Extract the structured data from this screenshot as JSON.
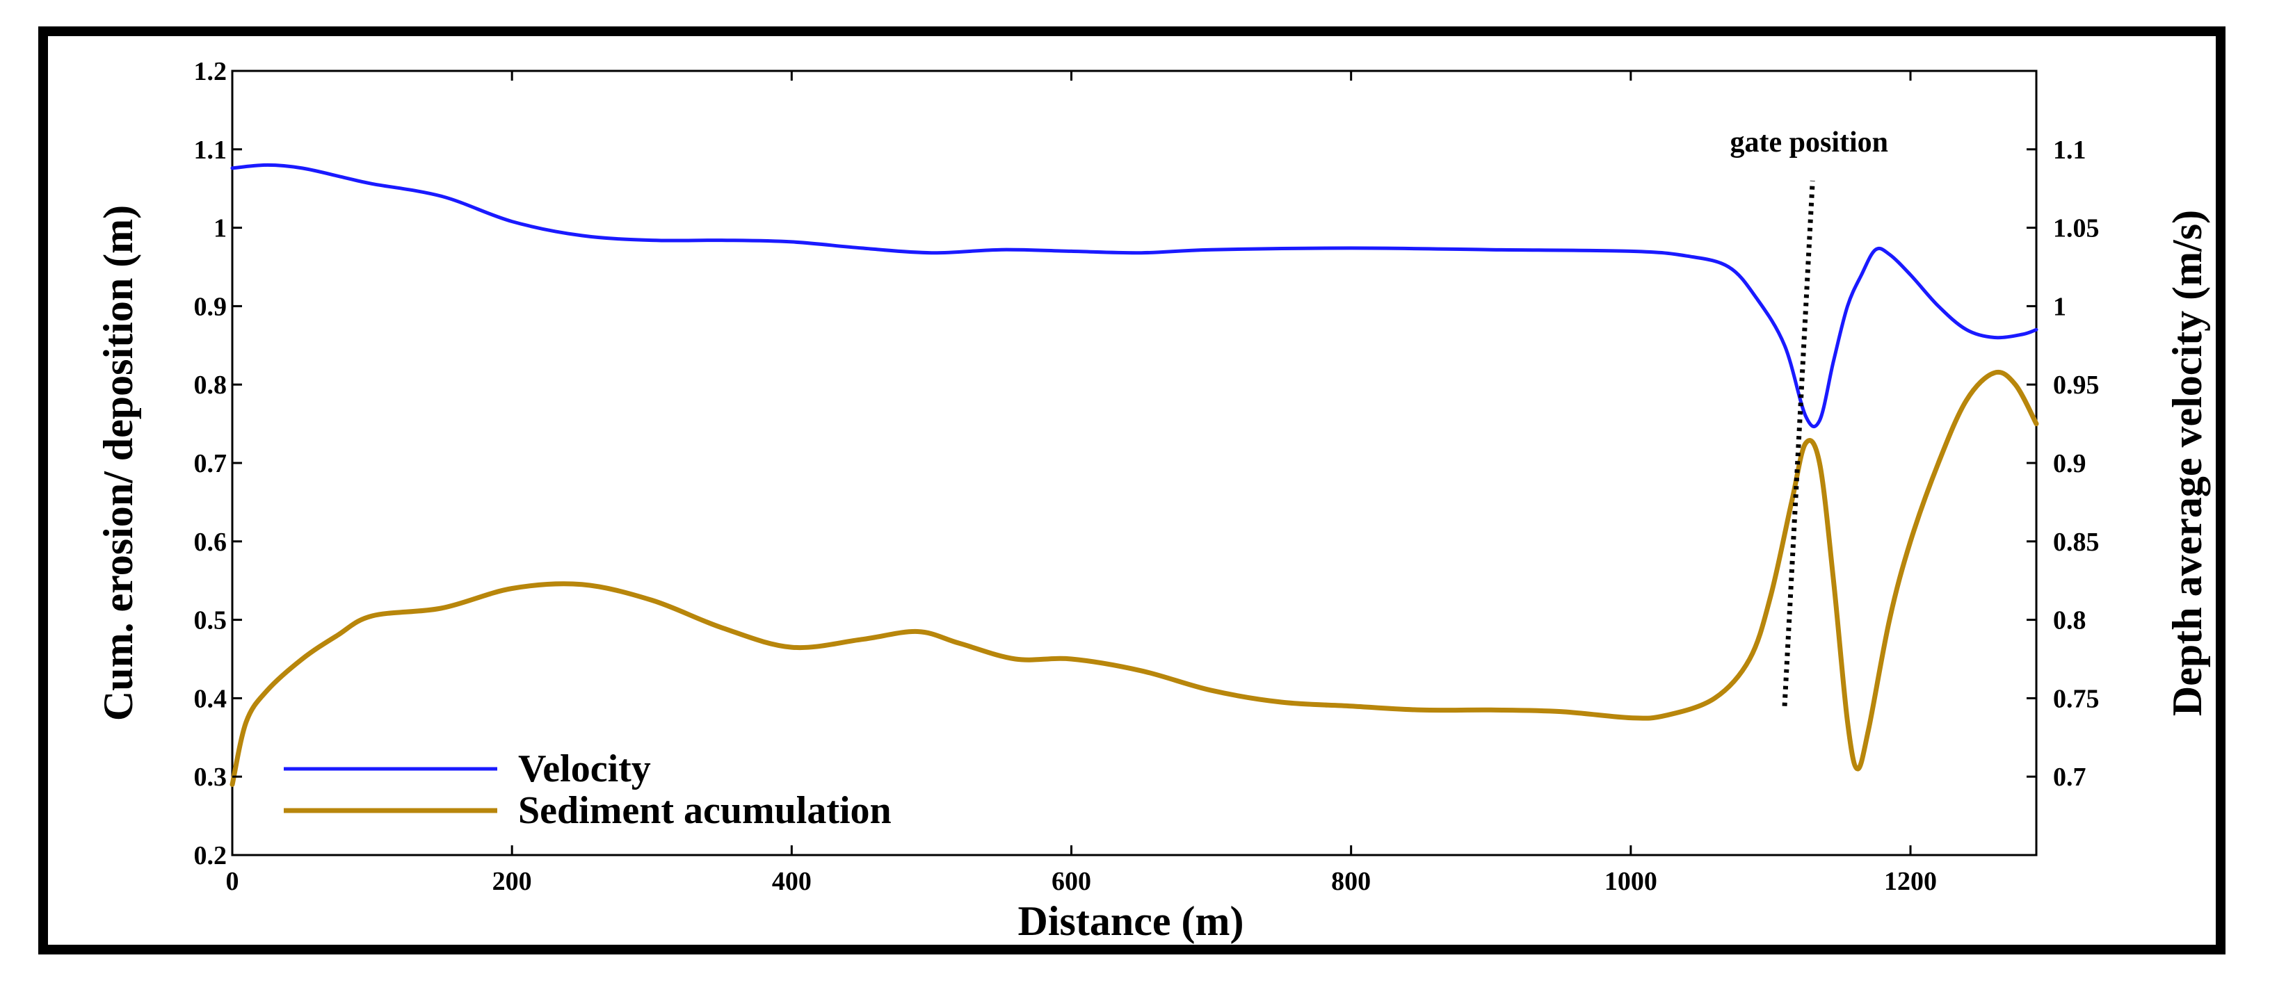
{
  "chart_data": {
    "type": "line",
    "title": "",
    "xlabel": "Distance (m)",
    "ylabel_left": "Cum. erosion/ deposition (m)",
    "ylabel_right": "Depth average velocity (m/s)",
    "xlim": [
      0,
      1290
    ],
    "ylim_left": [
      0.2,
      1.2
    ],
    "ylim_right": [
      0.65,
      1.15
    ],
    "x_ticks": [
      0,
      200,
      400,
      600,
      800,
      1000,
      1200
    ],
    "x_tick_labels": [
      "0",
      "200",
      "400",
      "600",
      "800",
      "1000",
      "1200"
    ],
    "y_left_ticks": [
      0.2,
      0.3,
      0.4,
      0.5,
      0.6,
      0.7,
      0.8,
      0.9,
      1.0,
      1.1,
      1.2
    ],
    "y_left_tick_labels": [
      "0.2",
      "0.3",
      "0.4",
      "0.5",
      "0.6",
      "0.7",
      "0.8",
      "0.9",
      "1",
      "1.1",
      "1.2"
    ],
    "y_right_ticks": [
      0.7,
      0.75,
      0.8,
      0.85,
      0.9,
      0.95,
      1.0,
      1.05,
      1.1
    ],
    "y_right_tick_labels": [
      "0.7",
      "0.75",
      "0.8",
      "0.85",
      "0.9",
      "0.95",
      "1",
      "1.05",
      "1.1"
    ],
    "grid": false,
    "legend_position": "bottom-left",
    "series": [
      {
        "name": "Velocity",
        "axis": "right",
        "color": "#1a1aff",
        "points": [
          [
            0,
            1.088
          ],
          [
            25,
            1.09
          ],
          [
            50,
            1.088
          ],
          [
            80,
            1.082
          ],
          [
            100,
            1.078
          ],
          [
            150,
            1.07
          ],
          [
            200,
            1.054
          ],
          [
            250,
            1.045
          ],
          [
            300,
            1.042
          ],
          [
            350,
            1.042
          ],
          [
            400,
            1.041
          ],
          [
            450,
            1.037
          ],
          [
            500,
            1.034
          ],
          [
            550,
            1.036
          ],
          [
            600,
            1.035
          ],
          [
            650,
            1.034
          ],
          [
            700,
            1.036
          ],
          [
            800,
            1.037
          ],
          [
            900,
            1.036
          ],
          [
            1000,
            1.035
          ],
          [
            1040,
            1.032
          ],
          [
            1070,
            1.025
          ],
          [
            1090,
            1.005
          ],
          [
            1110,
            0.975
          ],
          [
            1125,
            0.93
          ],
          [
            1135,
            0.927
          ],
          [
            1145,
            0.965
          ],
          [
            1155,
            1.0
          ],
          [
            1165,
            1.02
          ],
          [
            1175,
            1.036
          ],
          [
            1185,
            1.033
          ],
          [
            1200,
            1.02
          ],
          [
            1220,
            1.0
          ],
          [
            1240,
            0.985
          ],
          [
            1260,
            0.98
          ],
          [
            1280,
            0.982
          ],
          [
            1290,
            0.985
          ]
        ]
      },
      {
        "name": "Sediment acumulation",
        "axis": "left",
        "color": "#b8860b",
        "points": [
          [
            0,
            0.29
          ],
          [
            10,
            0.37
          ],
          [
            25,
            0.41
          ],
          [
            50,
            0.45
          ],
          [
            75,
            0.48
          ],
          [
            100,
            0.505
          ],
          [
            150,
            0.515
          ],
          [
            200,
            0.54
          ],
          [
            250,
            0.545
          ],
          [
            300,
            0.525
          ],
          [
            350,
            0.49
          ],
          [
            400,
            0.465
          ],
          [
            450,
            0.475
          ],
          [
            490,
            0.485
          ],
          [
            520,
            0.47
          ],
          [
            560,
            0.45
          ],
          [
            600,
            0.45
          ],
          [
            650,
            0.435
          ],
          [
            700,
            0.41
          ],
          [
            750,
            0.395
          ],
          [
            800,
            0.39
          ],
          [
            850,
            0.385
          ],
          [
            900,
            0.385
          ],
          [
            950,
            0.383
          ],
          [
            1000,
            0.375
          ],
          [
            1025,
            0.378
          ],
          [
            1060,
            0.4
          ],
          [
            1085,
            0.45
          ],
          [
            1100,
            0.53
          ],
          [
            1115,
            0.65
          ],
          [
            1125,
            0.725
          ],
          [
            1135,
            0.7
          ],
          [
            1145,
            0.55
          ],
          [
            1155,
            0.37
          ],
          [
            1162,
            0.31
          ],
          [
            1170,
            0.36
          ],
          [
            1185,
            0.5
          ],
          [
            1200,
            0.6
          ],
          [
            1220,
            0.7
          ],
          [
            1240,
            0.78
          ],
          [
            1260,
            0.815
          ],
          [
            1275,
            0.8
          ],
          [
            1290,
            0.75
          ]
        ]
      }
    ],
    "annotations": [
      {
        "text": "gate position",
        "points": [
          [
            1110,
            0.39
          ],
          [
            1130,
            1.06
          ]
        ],
        "style": "dotted"
      }
    ]
  }
}
